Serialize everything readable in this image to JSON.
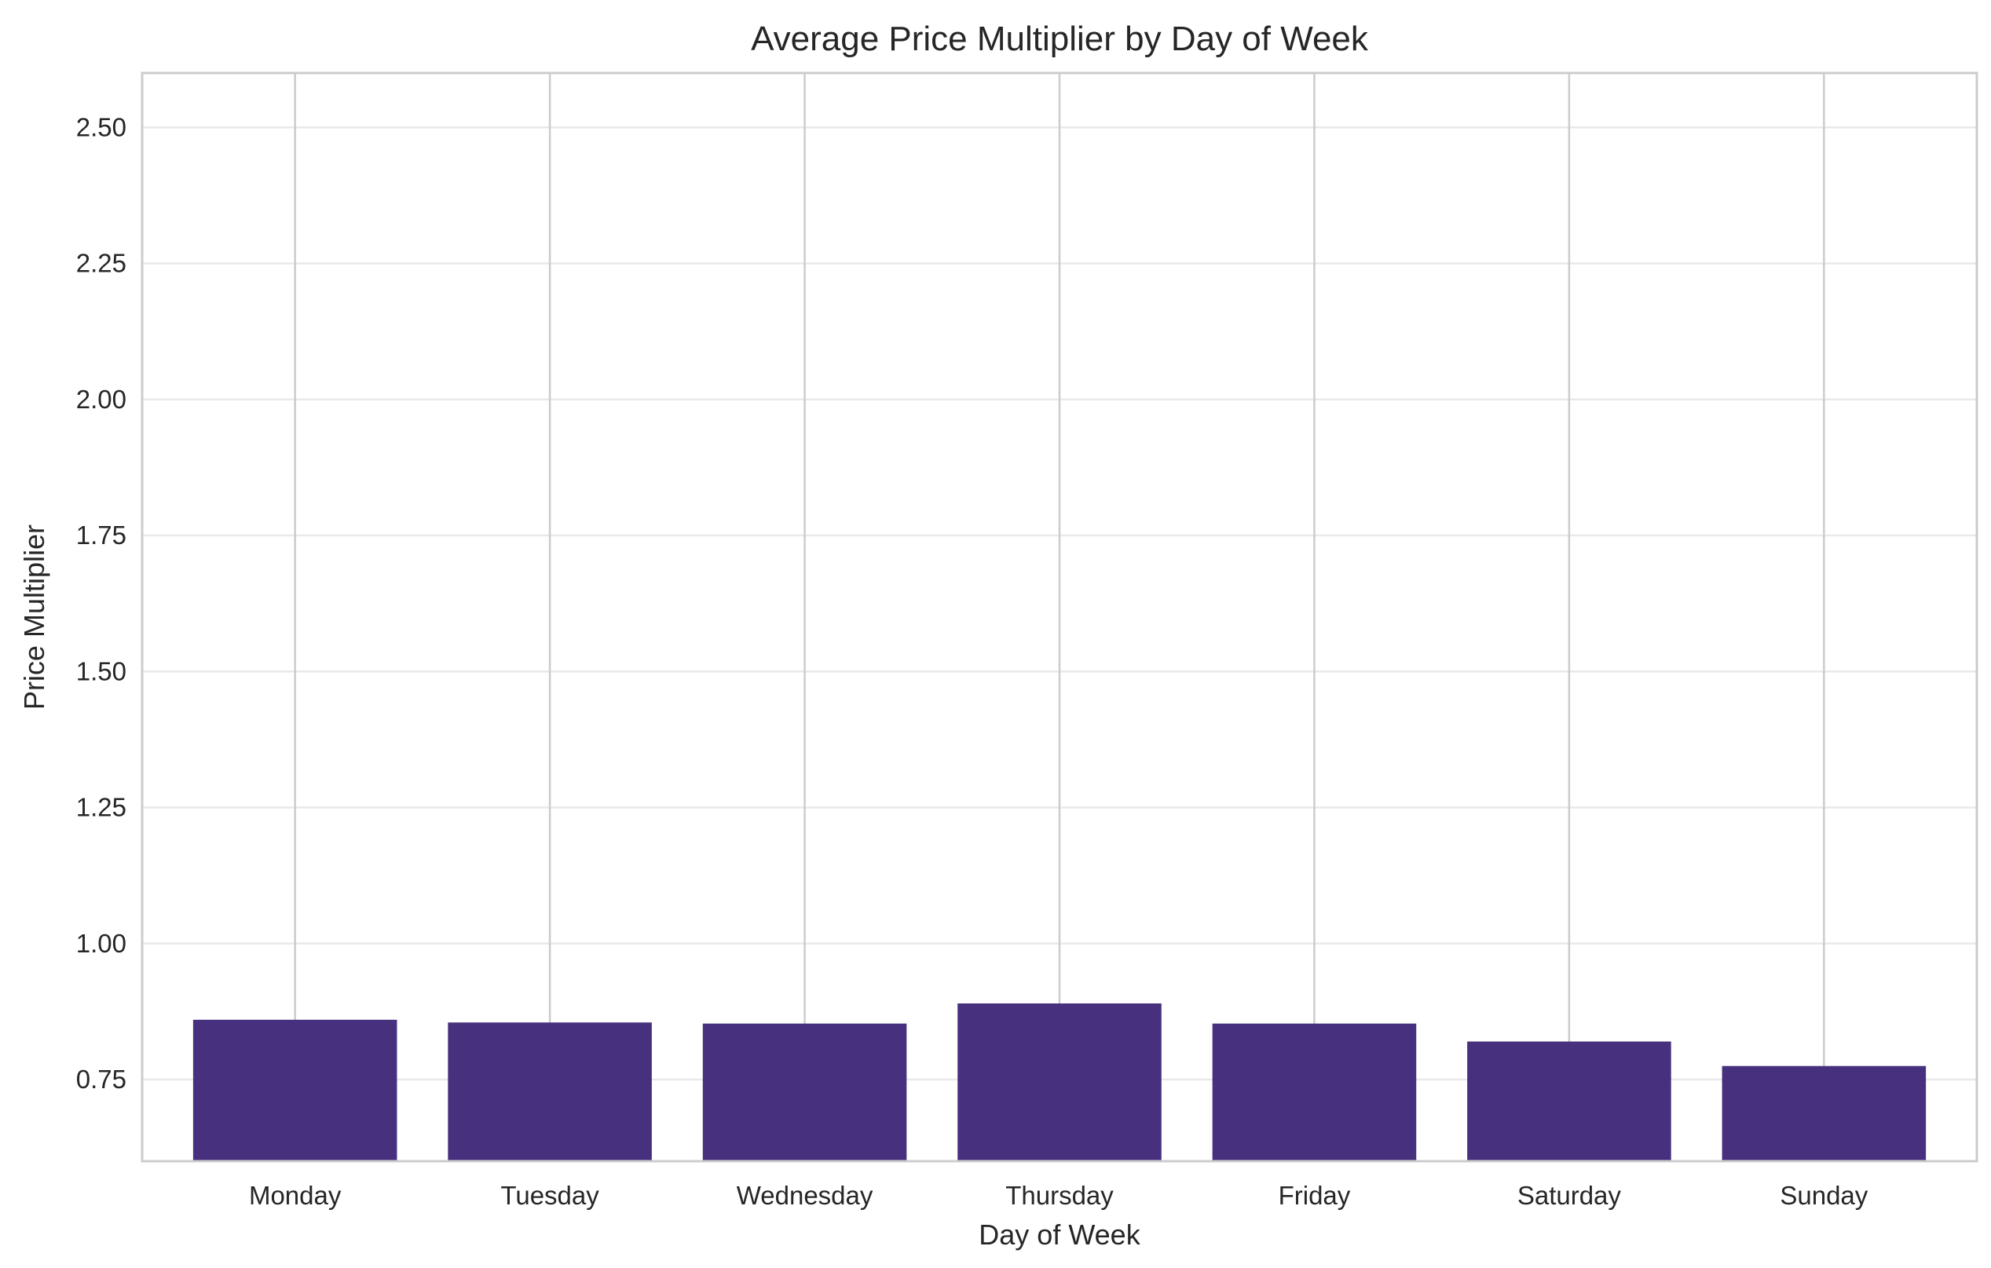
{
  "chart_data": {
    "type": "bar",
    "title": "Average Price Multiplier by Day of Week",
    "xlabel": "Day of Week",
    "ylabel": "Price Multiplier",
    "categories": [
      "Monday",
      "Tuesday",
      "Wednesday",
      "Thursday",
      "Friday",
      "Saturday",
      "Sunday"
    ],
    "values": [
      0.86,
      0.855,
      0.853,
      0.89,
      0.853,
      0.82,
      0.775
    ],
    "ylim": [
      0.6,
      2.6
    ],
    "yticks": [
      "0.75",
      "1.00",
      "1.25",
      "1.50",
      "1.75",
      "2.00",
      "2.25",
      "2.50"
    ],
    "grid": true,
    "bar_color": "#47317e",
    "grid_color": "#e9e9e9",
    "spine_color": "#cccccc"
  }
}
